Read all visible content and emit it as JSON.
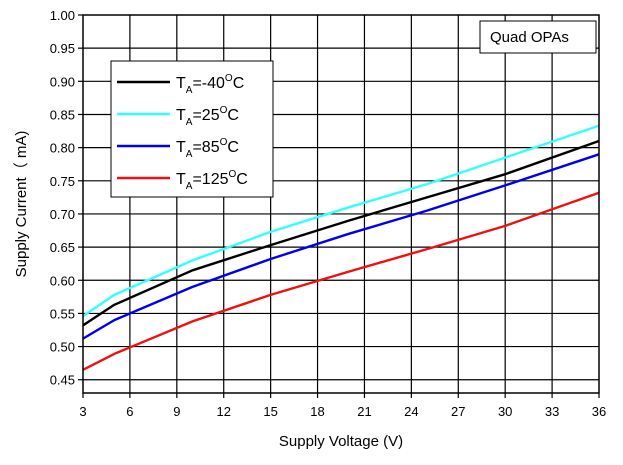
{
  "chart_data": {
    "type": "line",
    "xlabel": "Supply Voltage (V)",
    "ylabel": "Supply Current（ mA)",
    "annotation": "Quad OPAs",
    "xlim": [
      3,
      36
    ],
    "ylim": [
      0.43,
      1.0
    ],
    "xticks": [
      3,
      6,
      9,
      12,
      15,
      18,
      21,
      24,
      27,
      30,
      33,
      36
    ],
    "yticks": [
      0.45,
      0.5,
      0.55,
      0.6,
      0.65,
      0.7,
      0.75,
      0.8,
      0.85,
      0.9,
      0.95,
      1.0
    ],
    "grid": true,
    "legend_position": "top-left",
    "x": [
      3,
      5,
      10,
      15,
      20,
      25,
      30,
      36
    ],
    "series": [
      {
        "name": "T_A=-40°C",
        "legend": {
          "base": "T",
          "sub": "A",
          "mid": "=-40",
          "sup": "O",
          "unit": "C"
        },
        "color": "#000000",
        "values": [
          0.532,
          0.563,
          0.615,
          0.653,
          0.69,
          0.725,
          0.76,
          0.81
        ]
      },
      {
        "name": "T_A=25°C",
        "legend": {
          "base": "T",
          "sub": "A",
          "mid": "=25",
          "sup": "O",
          "unit": "C"
        },
        "color": "#33ffff",
        "values": [
          0.546,
          0.578,
          0.63,
          0.673,
          0.71,
          0.745,
          0.785,
          0.833
        ]
      },
      {
        "name": "T_A=85°C",
        "legend": {
          "base": "T",
          "sub": "A",
          "mid": "=85",
          "sup": "O",
          "unit": "C"
        },
        "color": "#0000ee",
        "values": [
          0.512,
          0.54,
          0.59,
          0.632,
          0.67,
          0.705,
          0.743,
          0.79
        ]
      },
      {
        "name": "T_A=125°C",
        "legend": {
          "base": "T",
          "sub": "A",
          "mid": "=125",
          "sup": "O",
          "unit": "C"
        },
        "color": "#ee1111",
        "values": [
          0.465,
          0.489,
          0.538,
          0.578,
          0.613,
          0.647,
          0.682,
          0.732
        ]
      }
    ]
  }
}
